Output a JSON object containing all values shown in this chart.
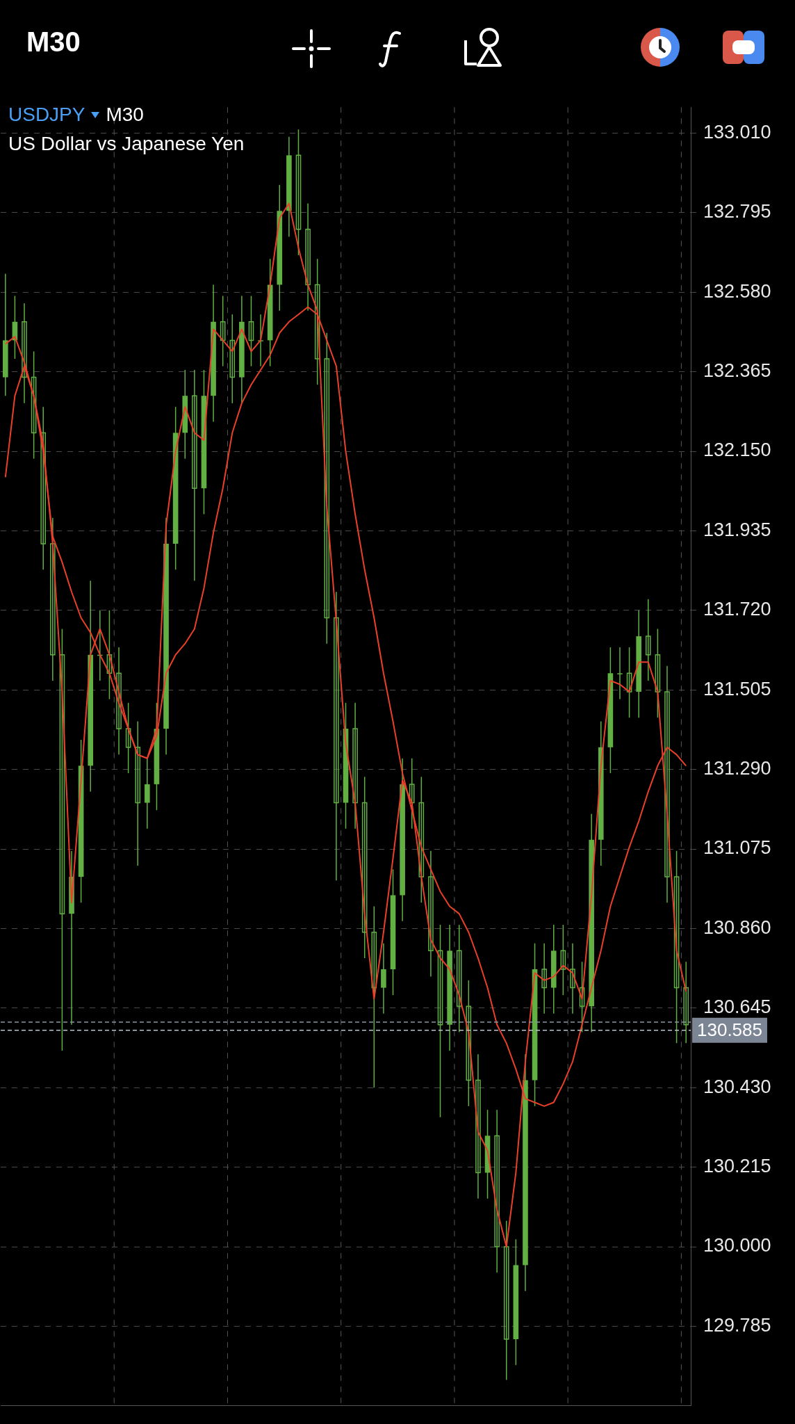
{
  "chart_data": {
    "type": "candlestick",
    "title": "USDJPY",
    "subtitle": "US Dollar vs Japanese Yen",
    "annotations": [
      "M30",
      "M30"
    ],
    "categories": [
      null,
      null,
      null,
      null,
      null,
      null,
      null,
      null,
      null,
      null,
      null,
      null,
      null,
      null,
      null,
      null,
      null,
      null,
      null,
      null,
      null,
      null,
      null,
      null,
      null,
      null,
      null,
      null,
      null,
      null,
      null,
      null,
      null,
      null,
      null,
      null,
      null,
      null,
      null,
      null,
      null,
      null,
      null,
      null,
      null,
      null,
      null,
      null,
      null,
      null,
      null,
      null,
      null,
      null,
      null,
      null,
      null,
      null,
      null,
      null,
      null,
      null,
      null,
      null,
      null,
      null,
      null,
      null,
      null,
      null,
      null,
      null,
      null
    ],
    "color": "#62b043",
    "ohlc": [
      [
        132.35,
        132.63,
        132.3,
        132.45
      ],
      [
        132.45,
        132.57,
        132.4,
        132.5
      ],
      [
        132.5,
        132.55,
        132.28,
        132.35
      ],
      [
        132.35,
        132.42,
        132.13,
        132.2
      ],
      [
        132.2,
        132.27,
        131.83,
        131.9
      ],
      [
        131.9,
        131.97,
        131.53,
        131.6
      ],
      [
        131.6,
        131.67,
        130.53,
        130.9
      ],
      [
        130.9,
        131.07,
        130.6,
        131.0
      ],
      [
        131.0,
        131.37,
        130.93,
        131.3
      ],
      [
        131.3,
        131.8,
        131.23,
        131.6
      ],
      [
        131.6,
        131.72,
        131.53,
        131.6
      ],
      [
        131.6,
        131.72,
        131.48,
        131.55
      ],
      [
        131.55,
        131.62,
        131.33,
        131.4
      ],
      [
        131.4,
        131.47,
        131.28,
        131.35
      ],
      [
        131.35,
        131.42,
        131.03,
        131.2
      ],
      [
        131.2,
        131.32,
        131.13,
        131.25
      ],
      [
        131.25,
        131.47,
        131.18,
        131.4
      ],
      [
        131.4,
        131.97,
        131.33,
        131.9
      ],
      [
        131.9,
        132.27,
        131.83,
        132.2
      ],
      [
        132.2,
        132.37,
        132.13,
        132.3
      ],
      [
        132.3,
        132.37,
        131.8,
        132.05
      ],
      [
        132.05,
        132.37,
        131.98,
        132.3
      ],
      [
        132.3,
        132.6,
        132.23,
        132.5
      ],
      [
        132.5,
        132.57,
        132.38,
        132.45
      ],
      [
        132.45,
        132.52,
        132.28,
        132.35
      ],
      [
        132.35,
        132.57,
        132.28,
        132.5
      ],
      [
        132.5,
        132.57,
        132.38,
        132.45
      ],
      [
        132.45,
        132.52,
        132.38,
        132.45
      ],
      [
        132.45,
        132.67,
        132.38,
        132.6
      ],
      [
        132.6,
        132.87,
        132.53,
        132.8
      ],
      [
        132.8,
        133.0,
        132.73,
        132.95
      ],
      [
        132.95,
        133.02,
        132.68,
        132.75
      ],
      [
        132.75,
        132.82,
        132.53,
        132.6
      ],
      [
        132.6,
        132.67,
        132.33,
        132.4
      ],
      [
        132.4,
        132.47,
        131.63,
        131.7
      ],
      [
        131.7,
        131.77,
        130.99,
        131.2
      ],
      [
        131.2,
        131.47,
        131.13,
        131.4
      ],
      [
        131.4,
        131.47,
        131.13,
        131.2
      ],
      [
        131.2,
        131.27,
        130.78,
        130.85
      ],
      [
        130.85,
        130.92,
        130.43,
        130.7
      ],
      [
        130.7,
        130.82,
        130.63,
        130.75
      ],
      [
        130.75,
        131.02,
        130.68,
        130.95
      ],
      [
        130.95,
        131.32,
        130.88,
        131.25
      ],
      [
        131.25,
        131.32,
        131.13,
        131.2
      ],
      [
        131.2,
        131.27,
        130.93,
        131.0
      ],
      [
        131.0,
        131.07,
        130.73,
        130.8
      ],
      [
        130.8,
        130.87,
        130.35,
        130.6
      ],
      [
        130.6,
        130.87,
        130.53,
        130.8
      ],
      [
        130.8,
        130.87,
        130.58,
        130.65
      ],
      [
        130.65,
        130.72,
        130.38,
        130.45
      ],
      [
        130.45,
        130.52,
        130.13,
        130.2
      ],
      [
        130.2,
        130.37,
        130.13,
        130.3
      ],
      [
        130.3,
        130.37,
        129.93,
        130.0
      ],
      [
        130.0,
        130.07,
        129.64,
        129.75
      ],
      [
        129.75,
        130.02,
        129.68,
        129.95
      ],
      [
        129.95,
        130.52,
        129.88,
        130.45
      ],
      [
        130.45,
        130.82,
        130.38,
        130.75
      ],
      [
        130.75,
        130.82,
        130.63,
        130.7
      ],
      [
        130.7,
        130.87,
        130.63,
        130.8
      ],
      [
        130.8,
        130.87,
        130.68,
        130.75
      ],
      [
        130.75,
        130.82,
        130.63,
        130.7
      ],
      [
        130.7,
        130.77,
        130.58,
        130.65
      ],
      [
        130.65,
        131.17,
        130.58,
        131.1
      ],
      [
        131.1,
        131.42,
        131.03,
        131.35
      ],
      [
        131.35,
        131.62,
        131.28,
        131.55
      ],
      [
        131.55,
        131.62,
        131.48,
        131.55
      ],
      [
        131.55,
        131.62,
        131.43,
        131.5
      ],
      [
        131.5,
        131.72,
        131.43,
        131.65
      ],
      [
        131.65,
        131.75,
        131.53,
        131.6
      ],
      [
        131.6,
        131.67,
        131.43,
        131.5
      ],
      [
        131.5,
        131.57,
        130.93,
        131.0
      ],
      [
        131.0,
        131.07,
        130.55,
        130.7
      ],
      [
        130.7,
        130.77,
        130.55,
        130.6
      ]
    ],
    "series": [
      {
        "type": "line",
        "color": "#e8402a",
        "values": [
          132.44,
          132.46,
          132.39,
          132.3,
          132.17,
          131.9,
          131.5,
          130.93,
          131.26,
          131.6,
          131.67,
          131.6,
          131.5,
          131.4,
          131.33,
          131.32,
          131.4,
          131.95,
          132.15,
          132.27,
          132.2,
          132.18,
          132.48,
          132.45,
          132.42,
          132.48,
          132.42,
          132.45,
          132.6,
          132.78,
          132.82,
          132.7,
          132.6,
          132.53,
          132.0,
          131.69,
          131.36,
          131.2,
          130.9,
          130.67,
          130.85,
          131.05,
          131.26,
          131.2,
          131.0,
          130.83,
          130.78,
          130.75,
          130.68,
          130.58,
          130.31,
          130.26,
          130.1,
          130.0,
          130.2,
          130.5,
          130.74,
          130.72,
          130.73,
          130.76,
          130.74,
          130.67,
          130.95,
          131.3,
          131.53,
          131.52,
          131.5,
          131.58,
          131.58,
          131.5,
          131.17,
          130.8,
          130.69
        ]
      },
      {
        "type": "line",
        "color": "#e8402a",
        "values": [
          132.08,
          132.3,
          132.38,
          132.3,
          132.15,
          131.92,
          131.85,
          131.77,
          131.7,
          131.66,
          131.6,
          131.55,
          131.47,
          131.4,
          131.33,
          131.32,
          131.38,
          131.55,
          131.6,
          131.63,
          131.67,
          131.78,
          131.93,
          132.05,
          132.2,
          132.28,
          132.33,
          132.37,
          132.41,
          132.47,
          132.5,
          132.52,
          132.54,
          132.52,
          132.45,
          132.38,
          132.15,
          131.98,
          131.83,
          131.7,
          131.55,
          131.42,
          131.28,
          131.18,
          131.08,
          131.02,
          130.96,
          130.92,
          130.9,
          130.85,
          130.78,
          130.7,
          130.6,
          130.55,
          130.48,
          130.4,
          130.39,
          130.38,
          130.39,
          130.44,
          130.5,
          130.6,
          130.7,
          130.8,
          130.92,
          131.0,
          131.08,
          131.15,
          131.23,
          131.3,
          131.35,
          131.33,
          131.3
        ]
      }
    ],
    "ylim": [
      129.57,
      133.08
    ],
    "yticks": [
      {
        "value": 129.785,
        "label": "129.785"
      },
      {
        "value": 130,
        "label": "130.000"
      },
      {
        "value": 130.215,
        "label": "130.215"
      },
      {
        "value": 130.43,
        "label": "130.430"
      },
      {
        "value": 130.645,
        "label": "130.645"
      },
      {
        "value": 130.86,
        "label": "130.860"
      },
      {
        "value": 131.075,
        "label": "131.075"
      },
      {
        "value": 131.29,
        "label": "131.290"
      },
      {
        "value": 131.505,
        "label": "131.505"
      },
      {
        "value": 131.72,
        "label": "131.720"
      },
      {
        "value": 131.935,
        "label": "131.935"
      },
      {
        "value": 132.15,
        "label": "132.150"
      },
      {
        "value": 132.365,
        "label": "132.365"
      },
      {
        "value": 132.58,
        "label": "132.580"
      },
      {
        "value": 132.795,
        "label": "132.795"
      },
      {
        "value": 133.01,
        "label": "133.010"
      }
    ],
    "ref_lines": [
      {
        "axis": "y",
        "value": 130.607,
        "label": null,
        "color": "#8a94a6",
        "line_style": "dashed"
      },
      {
        "axis": "y",
        "value": 130.585,
        "label": "130.585",
        "color": "#b8c2d0",
        "line_style": "dashed"
      }
    ],
    "grid": true,
    "legend": false,
    "marker": "none",
    "line_style": "solid"
  }
}
